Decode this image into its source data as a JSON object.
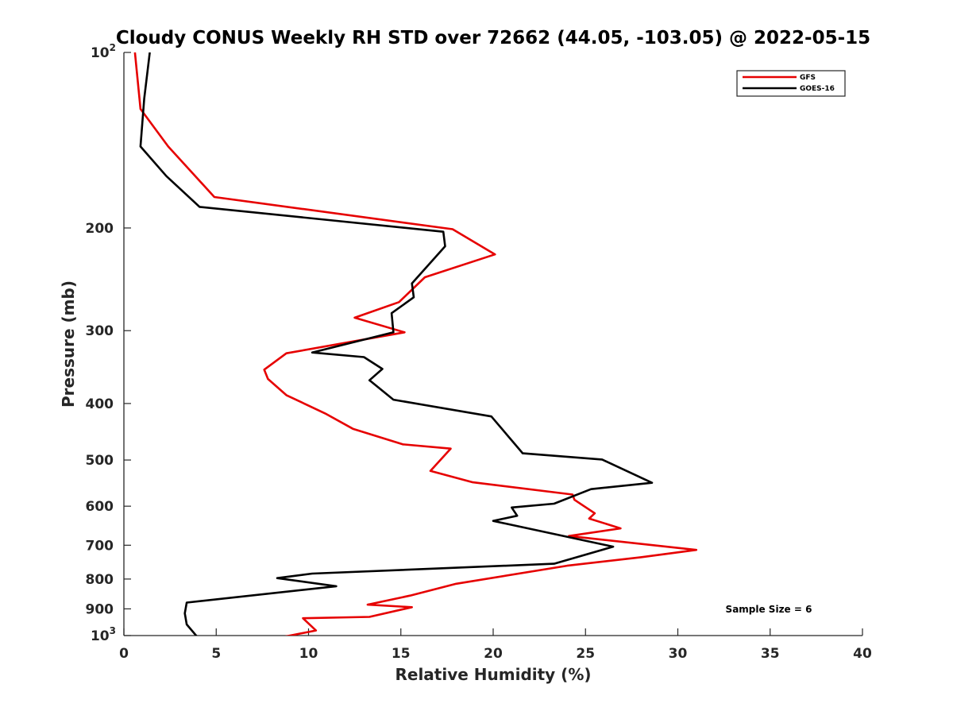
{
  "chart_data": {
    "type": "line",
    "title": "Cloudy CONUS Weekly RH STD over 72662 (44.05, -103.05) @ 2022-05-15",
    "xlabel": "Relative Humidity (%)",
    "ylabel": "Pressure (mb)",
    "xlim": [
      0,
      40
    ],
    "ylim": [
      100,
      1000
    ],
    "y_scale": "log",
    "y_reversed": true,
    "grid": false,
    "legend_position": "top-right",
    "x_ticks": [
      "0",
      "5",
      "10",
      "15",
      "20",
      "25",
      "30",
      "35",
      "40"
    ],
    "y_ticks": [
      {
        "value": 100,
        "base": "10",
        "exp": "2"
      },
      {
        "value": 200,
        "label": "200"
      },
      {
        "value": 300,
        "label": "300"
      },
      {
        "value": 400,
        "label": "400"
      },
      {
        "value": 500,
        "label": "500"
      },
      {
        "value": 600,
        "label": "600"
      },
      {
        "value": 700,
        "label": "700"
      },
      {
        "value": 800,
        "label": "800"
      },
      {
        "value": 900,
        "label": "900"
      },
      {
        "value": 1000,
        "base": "10",
        "exp": "3"
      }
    ],
    "series": [
      {
        "name": "GFS",
        "color": "#e60000",
        "x": [
          0.6,
          0.9,
          2.4,
          4.9,
          17.8,
          20.1,
          16.3,
          14.9,
          12.5,
          15.2,
          8.8,
          7.6,
          7.8,
          8.8,
          10.9,
          12.4,
          15.1,
          17.7,
          16.6,
          18.9,
          24.3,
          24.4,
          25.5,
          25.2,
          26.9,
          24.1,
          31.0,
          28.0,
          24.0,
          18.0,
          15.5,
          13.2,
          15.6,
          13.3,
          9.7,
          10.4,
          8.3
        ],
        "y": [
          100,
          125,
          145,
          177,
          201,
          222,
          243,
          268,
          285,
          302,
          328,
          350,
          363,
          387,
          416,
          442,
          470,
          478,
          522,
          546,
          573,
          585,
          617,
          630,
          655,
          675,
          713,
          734,
          759,
          815,
          854,
          885,
          894,
          929,
          934,
          980,
          1010
        ]
      },
      {
        "name": "GOES-16",
        "color": "#000000",
        "x": [
          1.4,
          1.1,
          0.9,
          2.3,
          4.1,
          17.3,
          17.4,
          15.6,
          15.7,
          14.5,
          14.6,
          10.2,
          13.0,
          14.0,
          13.3,
          13.4,
          14.6,
          19.9,
          21.6,
          25.9,
          28.6,
          25.3,
          23.3,
          21.0,
          21.3,
          20.0,
          26.5,
          23.3,
          10.2,
          8.3,
          11.5,
          3.4,
          3.3,
          3.4,
          4.1
        ],
        "y": [
          100,
          120,
          145,
          163,
          184,
          203,
          215,
          249,
          263,
          280,
          302,
          327,
          333,
          349,
          365,
          367,
          394,
          421,
          487,
          499,
          547,
          561,
          594,
          603,
          623,
          636,
          704,
          753,
          783,
          797,
          823,
          878,
          916,
          957,
          1016
        ]
      }
    ],
    "annotations": [
      "Sample Size = 6"
    ]
  }
}
